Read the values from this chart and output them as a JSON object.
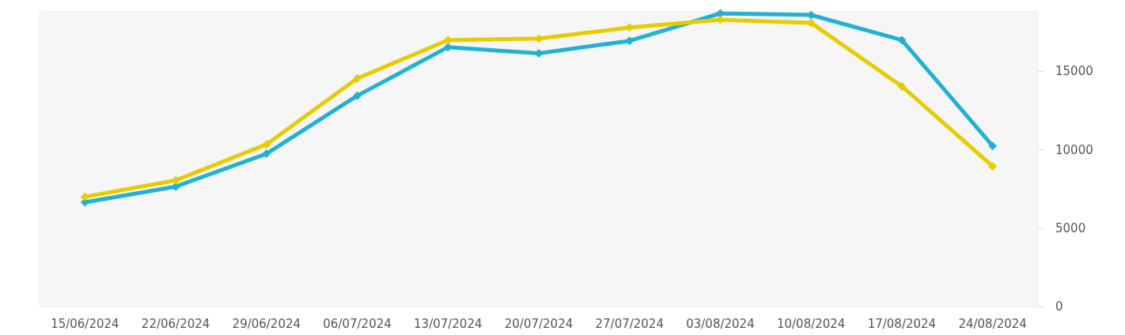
{
  "chart_data": {
    "type": "line",
    "categories": [
      "15/06/2024",
      "22/06/2024",
      "29/06/2024",
      "06/07/2024",
      "13/07/2024",
      "20/07/2024",
      "27/07/2024",
      "03/08/2024",
      "10/08/2024",
      "17/08/2024",
      "24/08/2024"
    ],
    "series": [
      {
        "color": "#1fb2d3",
        "values": [
          6650,
          7650,
          9750,
          13450,
          16550,
          16150,
          16950,
          18700,
          18600,
          17000,
          10250
        ]
      },
      {
        "color": "#e8cb00",
        "values": [
          7000,
          8050,
          10350,
          14550,
          17000,
          17100,
          17800,
          18300,
          18100,
          14050,
          8950
        ]
      }
    ],
    "ylim": [
      0,
      18800
    ],
    "yticks": [
      0,
      5000,
      10000,
      15000
    ],
    "grid": false,
    "marker": "diamond",
    "line_style": "solid"
  }
}
